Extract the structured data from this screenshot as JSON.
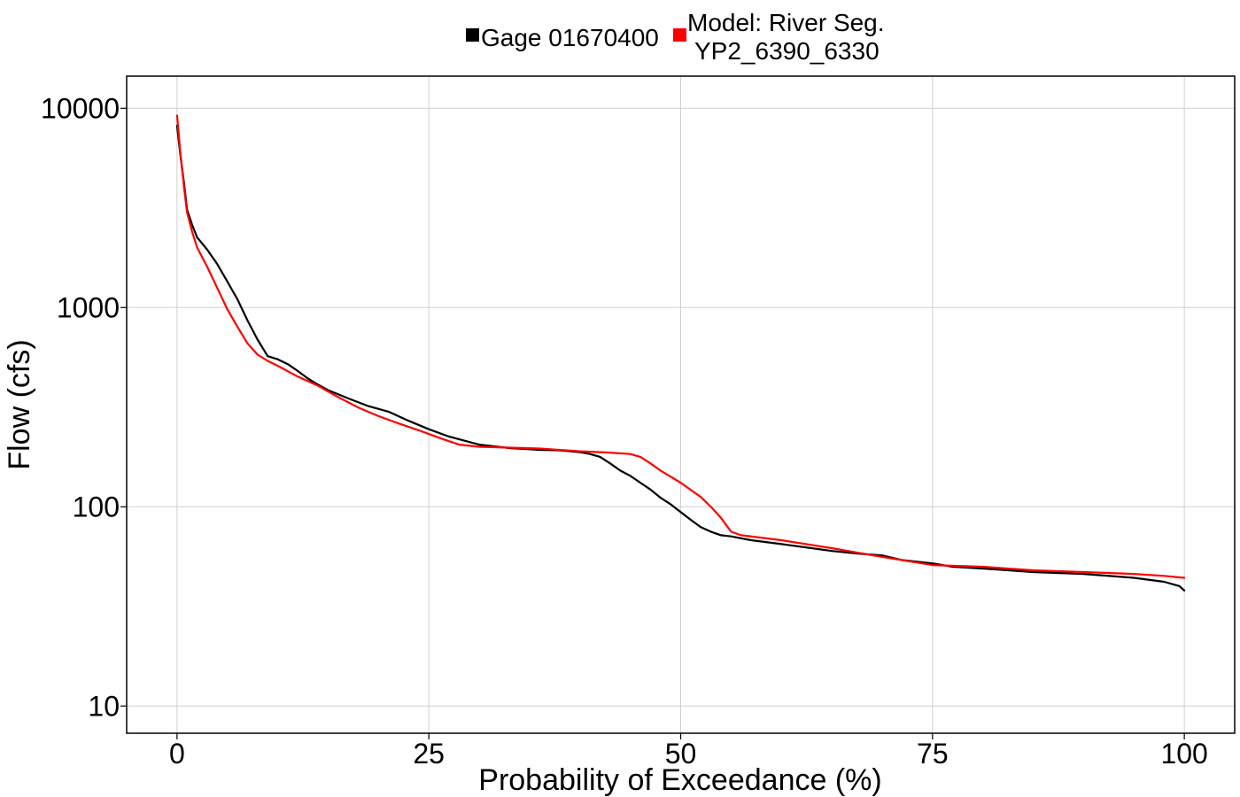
{
  "chart_data": {
    "type": "line",
    "xlabel": "Probability of Exceedance (%)",
    "ylabel": "Flow (cfs)",
    "x_ticks": [
      0,
      25,
      50,
      75,
      100
    ],
    "y_ticks": [
      10,
      100,
      1000,
      10000
    ],
    "xlim": [
      -5,
      105
    ],
    "ylim": [
      7.3,
      14500
    ],
    "y_scale": "log",
    "grid": true,
    "legend": {
      "placement": "top-center",
      "entries": [
        "Gage 01670400",
        "Model: River Seg.",
        "YP2_6390_6330"
      ]
    },
    "series": [
      {
        "name": "Gage 01670400",
        "color": "#000000",
        "x": [
          0,
          0.3,
          0.7,
          1,
          1.5,
          2,
          3,
          4,
          5,
          6,
          7,
          8,
          9,
          10,
          11,
          12,
          13,
          14,
          15,
          17,
          19,
          21,
          23,
          25,
          27,
          30,
          33,
          36,
          38,
          40,
          41,
          42,
          43,
          44,
          45,
          46,
          47,
          48,
          49,
          50,
          51,
          52,
          53,
          54,
          55,
          57,
          60,
          63,
          65,
          68,
          70,
          72,
          75,
          77,
          80,
          85,
          90,
          95,
          98,
          99.5,
          100
        ],
        "y": [
          8200,
          6000,
          4200,
          3100,
          2600,
          2250,
          1950,
          1650,
          1350,
          1100,
          860,
          690,
          570,
          550,
          520,
          480,
          440,
          410,
          385,
          350,
          320,
          300,
          270,
          245,
          225,
          205,
          197,
          193,
          192,
          188,
          184,
          178,
          165,
          152,
          143,
          132,
          122,
          111,
          103,
          94,
          86,
          79,
          75,
          72,
          71,
          68,
          65,
          62,
          60,
          58,
          57,
          54,
          52,
          50,
          49,
          47,
          46,
          44,
          42,
          40,
          38
        ]
      },
      {
        "name": "Model: River Seg. YP2_6390_6330",
        "color": "#ff0000",
        "x": [
          0,
          0.3,
          0.7,
          1,
          1.5,
          2,
          3,
          4,
          5,
          6,
          7,
          8,
          9,
          10,
          12,
          14,
          16,
          18,
          20,
          22,
          24,
          26,
          28,
          30,
          33,
          36,
          40,
          43,
          45,
          46,
          47,
          48,
          50,
          52,
          53,
          54,
          55,
          56,
          60,
          65,
          70,
          75,
          80,
          85,
          90,
          95,
          98,
          100
        ],
        "y": [
          9200,
          6200,
          4000,
          3000,
          2400,
          2000,
          1600,
          1250,
          980,
          800,
          660,
          580,
          540,
          510,
          450,
          405,
          355,
          315,
          285,
          262,
          242,
          222,
          205,
          200,
          198,
          196,
          190,
          187,
          184,
          178,
          165,
          152,
          132,
          112,
          100,
          88,
          75,
          72,
          68,
          62,
          56,
          51,
          50,
          48,
          47,
          46,
          45,
          44
        ]
      }
    ]
  }
}
